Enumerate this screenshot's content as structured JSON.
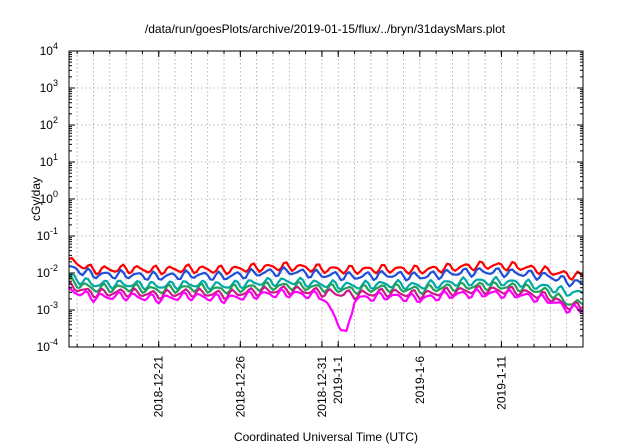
{
  "chart_data": {
    "type": "line",
    "title": "/data/run/goesPlots/archive/2019-01-15/flux/../bryn/31daysMars.plot",
    "xlabel": "Coordinated Universal Time (UTC)",
    "ylabel": "cGy/day",
    "yscale": "log",
    "ylim": [
      0.0001,
      10000
    ],
    "xlim": [
      "2018-12-15T12:00",
      "2019-01-16T00:00"
    ],
    "grid": true,
    "legend": "none",
    "x_ticks": [
      "2018-12-21",
      "2018-12-26",
      "2018-12-31",
      "2019-1-1",
      "2019-1-6",
      "2019-1-11"
    ],
    "x_tick_dates": [
      "2018-12-21",
      "2018-12-26",
      "2018-12-31",
      "2019-01-01",
      "2019-01-06",
      "2019-01-11"
    ],
    "y_ticks": [
      {
        "base": "10",
        "exp": "-4"
      },
      {
        "base": "10",
        "exp": "-3"
      },
      {
        "base": "10",
        "exp": "-2"
      },
      {
        "base": "10",
        "exp": "-1"
      },
      {
        "base": "10",
        "exp": "0"
      },
      {
        "base": "10",
        "exp": "1"
      },
      {
        "base": "10",
        "exp": "2"
      },
      {
        "base": "10",
        "exp": "3"
      },
      {
        "base": "10",
        "exp": "4"
      }
    ],
    "series": [
      {
        "color": "#ff0000",
        "values": [
          [
            "2018-12-15T12:00",
            0.022
          ],
          [
            "2018-12-17T00:00",
            0.012
          ],
          [
            "2018-12-19T00:00",
            0.013
          ],
          [
            "2018-12-21T00:00",
            0.012
          ],
          [
            "2018-12-23T00:00",
            0.013
          ],
          [
            "2018-12-25T00:00",
            0.012
          ],
          [
            "2018-12-27T00:00",
            0.014
          ],
          [
            "2018-12-29T00:00",
            0.015
          ],
          [
            "2018-12-31T00:00",
            0.013
          ],
          [
            "2019-01-02T00:00",
            0.012
          ],
          [
            "2019-01-04T00:00",
            0.013
          ],
          [
            "2019-01-06T00:00",
            0.012
          ],
          [
            "2019-01-08T00:00",
            0.014
          ],
          [
            "2019-01-10T00:00",
            0.016
          ],
          [
            "2019-01-12T00:00",
            0.015
          ],
          [
            "2019-01-14T00:00",
            0.011
          ],
          [
            "2019-01-15T00:00",
            0.009
          ],
          [
            "2019-01-16T00:00",
            0.008
          ]
        ]
      },
      {
        "color": "#1f4fd8",
        "values": [
          [
            "2018-12-15T12:00",
            0.014
          ],
          [
            "2018-12-17T00:00",
            0.009
          ],
          [
            "2018-12-19T00:00",
            0.009
          ],
          [
            "2018-12-21T00:00",
            0.008
          ],
          [
            "2018-12-23T00:00",
            0.009
          ],
          [
            "2018-12-25T00:00",
            0.008
          ],
          [
            "2018-12-27T00:00",
            0.01
          ],
          [
            "2018-12-29T00:00",
            0.011
          ],
          [
            "2018-12-31T00:00",
            0.009
          ],
          [
            "2019-01-02T00:00",
            0.008
          ],
          [
            "2019-01-04T00:00",
            0.009
          ],
          [
            "2019-01-06T00:00",
            0.008
          ],
          [
            "2019-01-08T00:00",
            0.01
          ],
          [
            "2019-01-10T00:00",
            0.011
          ],
          [
            "2019-01-12T00:00",
            0.01
          ],
          [
            "2019-01-14T00:00",
            0.008
          ],
          [
            "2019-01-15T00:00",
            0.006
          ],
          [
            "2019-01-16T00:00",
            0.005
          ]
        ]
      },
      {
        "color": "#00a8a8",
        "values": [
          [
            "2018-12-15T12:00",
            0.008
          ],
          [
            "2018-12-17T00:00",
            0.005
          ],
          [
            "2018-12-19T00:00",
            0.005
          ],
          [
            "2018-12-21T00:00",
            0.0045
          ],
          [
            "2018-12-23T00:00",
            0.005
          ],
          [
            "2018-12-25T00:00",
            0.0045
          ],
          [
            "2018-12-27T00:00",
            0.0055
          ],
          [
            "2018-12-29T00:00",
            0.006
          ],
          [
            "2018-12-31T00:00",
            0.005
          ],
          [
            "2019-01-02T00:00",
            0.0045
          ],
          [
            "2019-01-04T00:00",
            0.005
          ],
          [
            "2019-01-06T00:00",
            0.0045
          ],
          [
            "2019-01-08T00:00",
            0.0055
          ],
          [
            "2019-01-10T00:00",
            0.006
          ],
          [
            "2019-01-12T00:00",
            0.0055
          ],
          [
            "2019-01-14T00:00",
            0.004
          ],
          [
            "2019-01-15T00:00",
            0.003
          ],
          [
            "2019-01-16T00:00",
            0.0028
          ]
        ]
      },
      {
        "color": "#22a05a",
        "values": [
          [
            "2018-12-15T12:00",
            0.006
          ],
          [
            "2018-12-17T00:00",
            0.0038
          ],
          [
            "2018-12-19T00:00",
            0.004
          ],
          [
            "2018-12-21T00:00",
            0.0035
          ],
          [
            "2018-12-23T00:00",
            0.004
          ],
          [
            "2018-12-25T00:00",
            0.0035
          ],
          [
            "2018-12-27T00:00",
            0.0042
          ],
          [
            "2018-12-29T00:00",
            0.0045
          ],
          [
            "2018-12-31T00:00",
            0.004
          ],
          [
            "2019-01-02T00:00",
            0.0035
          ],
          [
            "2019-01-04T00:00",
            0.004
          ],
          [
            "2019-01-06T00:00",
            0.0035
          ],
          [
            "2019-01-08T00:00",
            0.0042
          ],
          [
            "2019-01-10T00:00",
            0.0045
          ],
          [
            "2019-01-12T00:00",
            0.0042
          ],
          [
            "2019-01-14T00:00",
            0.003
          ],
          [
            "2019-01-15T00:00",
            0.0016
          ],
          [
            "2019-01-16T00:00",
            0.0014
          ]
        ]
      },
      {
        "color": "#cc1a8a",
        "values": [
          [
            "2018-12-15T12:00",
            0.0045
          ],
          [
            "2018-12-17T00:00",
            0.0028
          ],
          [
            "2018-12-19T00:00",
            0.003
          ],
          [
            "2018-12-21T00:00",
            0.0026
          ],
          [
            "2018-12-23T00:00",
            0.003
          ],
          [
            "2018-12-25T00:00",
            0.0026
          ],
          [
            "2018-12-27T00:00",
            0.0032
          ],
          [
            "2018-12-29T00:00",
            0.0035
          ],
          [
            "2018-12-31T00:00",
            0.003
          ],
          [
            "2019-01-02T00:00",
            0.0026
          ],
          [
            "2019-01-04T00:00",
            0.003
          ],
          [
            "2019-01-06T00:00",
            0.0026
          ],
          [
            "2019-01-08T00:00",
            0.0032
          ],
          [
            "2019-01-10T00:00",
            0.0035
          ],
          [
            "2019-01-12T00:00",
            0.0032
          ],
          [
            "2019-01-14T00:00",
            0.0022
          ],
          [
            "2019-01-15T00:00",
            0.0013
          ],
          [
            "2019-01-16T00:00",
            0.0012
          ]
        ]
      },
      {
        "color": "#ff00ff",
        "values": [
          [
            "2018-12-15T12:00",
            0.0035
          ],
          [
            "2018-12-17T00:00",
            0.0022
          ],
          [
            "2018-12-19T00:00",
            0.0024
          ],
          [
            "2018-12-21T00:00",
            0.002
          ],
          [
            "2018-12-23T00:00",
            0.0024
          ],
          [
            "2018-12-25T00:00",
            0.002
          ],
          [
            "2018-12-27T00:00",
            0.0026
          ],
          [
            "2018-12-29T00:00",
            0.0028
          ],
          [
            "2018-12-31T00:00",
            0.0024
          ],
          [
            "2019-01-01T12:00",
            0.0002
          ],
          [
            "2019-01-02T00:00",
            0.002
          ],
          [
            "2019-01-04T00:00",
            0.0024
          ],
          [
            "2019-01-06T00:00",
            0.002
          ],
          [
            "2019-01-08T00:00",
            0.0026
          ],
          [
            "2019-01-10T00:00",
            0.0028
          ],
          [
            "2019-01-12T00:00",
            0.0026
          ],
          [
            "2019-01-14T00:00",
            0.0018
          ],
          [
            "2019-01-15T00:00",
            0.0011
          ],
          [
            "2019-01-16T00:00",
            0.001
          ]
        ]
      }
    ]
  }
}
